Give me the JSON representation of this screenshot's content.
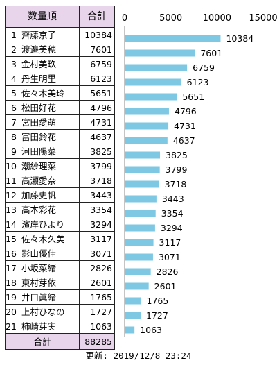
{
  "table": {
    "header_name": "数量順",
    "header_total": "合計",
    "rows": [
      {
        "rank": "1",
        "name": "齊藤京子",
        "total": "10384"
      },
      {
        "rank": "2",
        "name": "渡邉美穂",
        "total": "7601"
      },
      {
        "rank": "3",
        "name": "金村美玖",
        "total": "6759"
      },
      {
        "rank": "4",
        "name": "丹生明里",
        "total": "6123"
      },
      {
        "rank": "5",
        "name": "佐々木美玲",
        "total": "5651"
      },
      {
        "rank": "6",
        "name": "松田好花",
        "total": "4796"
      },
      {
        "rank": "7",
        "name": "宮田愛萌",
        "total": "4731"
      },
      {
        "rank": "8",
        "name": "富田鈴花",
        "total": "4637"
      },
      {
        "rank": "9",
        "name": "河田陽菜",
        "total": "3825"
      },
      {
        "rank": "10",
        "name": "潮紗理菜",
        "total": "3799"
      },
      {
        "rank": "11",
        "name": "高瀬愛奈",
        "total": "3718"
      },
      {
        "rank": "12",
        "name": "加藤史帆",
        "total": "3443"
      },
      {
        "rank": "13",
        "name": "高本彩花",
        "total": "3354"
      },
      {
        "rank": "14",
        "name": "濱岸ひより",
        "total": "3294"
      },
      {
        "rank": "15",
        "name": "佐々木久美",
        "total": "3117"
      },
      {
        "rank": "16",
        "name": "影山優佳",
        "total": "3071"
      },
      {
        "rank": "17",
        "name": "小坂菜緒",
        "total": "2826"
      },
      {
        "rank": "18",
        "name": "東村芽依",
        "total": "2601"
      },
      {
        "rank": "19",
        "name": "井口眞緒",
        "total": "1765"
      },
      {
        "rank": "20",
        "name": "上村ひなの",
        "total": "1727"
      },
      {
        "rank": "21",
        "name": "柿崎芽実",
        "total": "1063"
      }
    ],
    "sum_label": "合計",
    "sum_value": "88285"
  },
  "updated": "更新: 2019/12/8 23:24",
  "chart_data": {
    "type": "bar",
    "orientation": "horizontal",
    "categories": [
      "齊藤京子",
      "渡邉美穂",
      "金村美玖",
      "丹生明里",
      "佐々木美玲",
      "松田好花",
      "宮田愛萌",
      "富田鈴花",
      "河田陽菜",
      "潮紗理菜",
      "高瀬愛奈",
      "加藤史帆",
      "高本彩花",
      "濱岸ひより",
      "佐々木久美",
      "影山優佳",
      "小坂菜緒",
      "東村芽依",
      "井口眞緒",
      "上村ひなの",
      "柿崎芽実"
    ],
    "values": [
      10384,
      7601,
      6759,
      6123,
      5651,
      4796,
      4731,
      4637,
      3825,
      3799,
      3718,
      3443,
      3354,
      3294,
      3117,
      3071,
      2826,
      2601,
      1765,
      1727,
      1063
    ],
    "x_ticks": [
      "0",
      "5000",
      "10000",
      "15000"
    ],
    "xlim": [
      0,
      15000
    ],
    "bar_color": "#7ec8e3",
    "grid": false,
    "legend": "none"
  }
}
